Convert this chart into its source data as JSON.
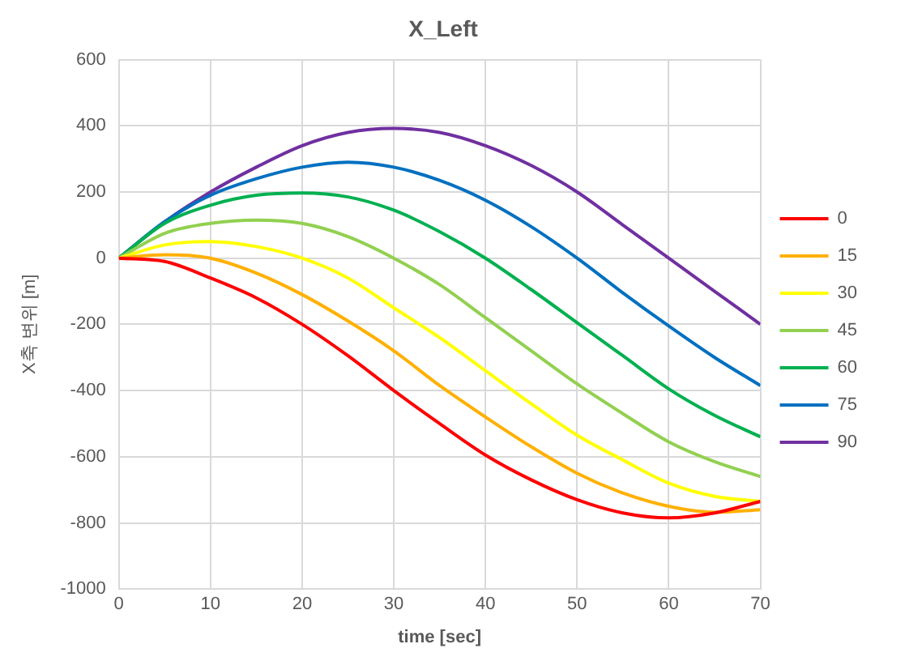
{
  "chart_data": {
    "type": "line",
    "title": "X_Left",
    "xlabel": "time [sec]",
    "ylabel": "X축 변위 [m]",
    "x": [
      0,
      5,
      10,
      15,
      20,
      25,
      30,
      35,
      40,
      45,
      50,
      55,
      60,
      65,
      70
    ],
    "xlim": [
      0,
      70
    ],
    "xticks": [
      0,
      10,
      20,
      30,
      40,
      50,
      60,
      70
    ],
    "ylim": [
      -1000,
      600
    ],
    "yticks": [
      -1000,
      -800,
      -600,
      -400,
      -200,
      0,
      200,
      400,
      600
    ],
    "grid": true,
    "legend": "right",
    "marker": "none",
    "line_style": "solid",
    "series": [
      {
        "name": "0",
        "color": "#ff0000",
        "values": [
          0,
          -10,
          -60,
          -120,
          -200,
          -295,
          -400,
          -500,
          -595,
          -670,
          -730,
          -770,
          -785,
          -770,
          -735
        ]
      },
      {
        "name": "15",
        "color": "#ffb000",
        "values": [
          0,
          10,
          0,
          -45,
          -110,
          -190,
          -280,
          -385,
          -480,
          -570,
          -650,
          -710,
          -750,
          -768,
          -760
        ]
      },
      {
        "name": "30",
        "color": "#ffff00",
        "values": [
          0,
          40,
          50,
          35,
          0,
          -60,
          -150,
          -240,
          -340,
          -440,
          -535,
          -610,
          -680,
          -720,
          -735
        ]
      },
      {
        "name": "45",
        "color": "#92d050",
        "values": [
          0,
          75,
          105,
          115,
          105,
          65,
          0,
          -80,
          -180,
          -280,
          -380,
          -470,
          -555,
          -615,
          -660
        ]
      },
      {
        "name": "60",
        "color": "#00b050",
        "values": [
          0,
          105,
          160,
          190,
          197,
          185,
          145,
          80,
          0,
          -95,
          -195,
          -295,
          -395,
          -475,
          -540
        ]
      },
      {
        "name": "75",
        "color": "#0070c0",
        "values": [
          0,
          110,
          190,
          240,
          275,
          290,
          275,
          235,
          175,
          95,
          0,
          -105,
          -205,
          -300,
          -385
        ]
      },
      {
        "name": "90",
        "color": "#7030a0",
        "values": [
          0,
          110,
          200,
          275,
          340,
          380,
          392,
          380,
          340,
          280,
          200,
          100,
          0,
          -100,
          -200
        ]
      }
    ]
  }
}
